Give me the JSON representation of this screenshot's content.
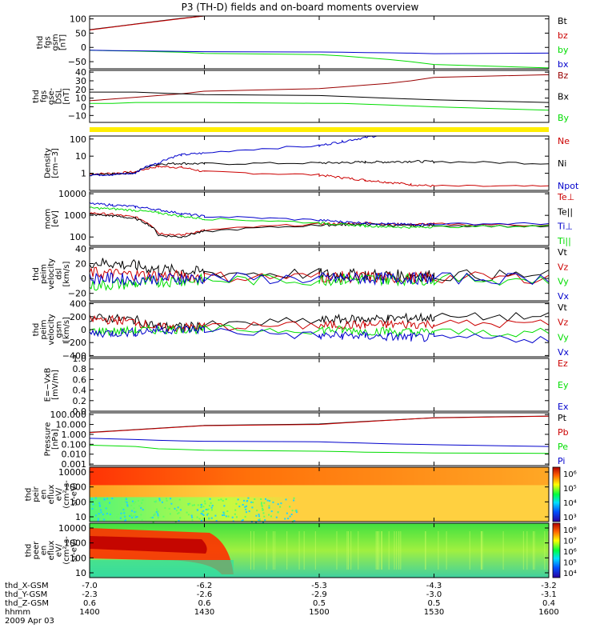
{
  "title": "P3 (TH-D) fields and on-board moments overview",
  "date_label": "2009 Apr 03",
  "orbit_rows": [
    {
      "label": "thd_X-GSM",
      "values": [
        "-7.0",
        "-6.2",
        "-5.3",
        "-4.3",
        "-3.2"
      ]
    },
    {
      "label": "thd_Y-GSM",
      "values": [
        "-2.3",
        "-2.6",
        "-2.9",
        "-3.0",
        "-3.1"
      ]
    },
    {
      "label": "thd_Z-GSM",
      "values": [
        "0.6",
        "0.6",
        "0.5",
        "0.5",
        "0.4"
      ]
    },
    {
      "label": "hhmm",
      "values": [
        "1400",
        "1430",
        "1500",
        "1530",
        "1600"
      ]
    }
  ],
  "colors": {
    "black": "#000000",
    "red": "#cc0000",
    "green": "#00dd00",
    "blue": "#0000cc",
    "darkred": "#990000",
    "yellow": "#ffee00"
  },
  "chart_data": [
    {
      "type": "line",
      "ylabel_lines": [
        "thd",
        "fgs",
        "gsm",
        "[nT]"
      ],
      "yticks": [
        "100",
        "50",
        "0",
        "−50"
      ],
      "ylim": [
        -75,
        110
      ],
      "x": [
        1400,
        1410,
        1420,
        1430,
        1440,
        1450,
        1500,
        1510,
        1520,
        1530,
        1540,
        1550,
        1600
      ],
      "series": [
        {
          "name": "Bt",
          "color": "black",
          "values": [
            62,
            72,
            82,
            92,
            102,
            112,
            null,
            null,
            null,
            null,
            null,
            null,
            null
          ]
        },
        {
          "name": "bz",
          "color": "red",
          "values": [
            61,
            71,
            81,
            91,
            101,
            111,
            null,
            null,
            null,
            null,
            null,
            null,
            null
          ]
        },
        {
          "name": "by",
          "color": "green",
          "values": [
            -10,
            -12,
            -13,
            -15,
            -17,
            -21,
            -25,
            -30,
            -36,
            -42,
            -50,
            -60,
            -72
          ]
        },
        {
          "name": "bx",
          "color": "blue",
          "values": [
            -10,
            -11,
            -12,
            -13,
            -14,
            -15,
            -16,
            -17,
            -18,
            -19,
            -20,
            -22,
            -20
          ]
        }
      ]
    },
    {
      "type": "line",
      "ylabel_lines": [
        "thd",
        "fgs",
        "gse-",
        "DSL",
        "[nT]"
      ],
      "yticks": [
        "40",
        "30",
        "20",
        "10",
        "0",
        "−10"
      ],
      "ylim": [
        -18,
        42
      ],
      "x": [
        1400,
        1410,
        1420,
        1430,
        1440,
        1450,
        1500,
        1510,
        1520,
        1530,
        1540,
        1550,
        1600
      ],
      "series": [
        {
          "name": "Bz",
          "color": "darkred",
          "values": [
            7,
            9,
            11,
            13,
            15,
            18,
            21,
            23,
            25,
            27,
            30,
            34,
            37
          ]
        },
        {
          "name": "Bx",
          "color": "black",
          "values": [
            17,
            17,
            17,
            16,
            15,
            14,
            13,
            12,
            11,
            10,
            9,
            8,
            5
          ]
        },
        {
          "name": "By",
          "color": "green",
          "values": [
            4,
            4,
            5,
            5,
            5,
            5,
            4,
            4,
            3,
            2,
            1,
            0,
            -4
          ]
        }
      ]
    },
    {
      "type": "line",
      "ylabel_lines": [
        "Density",
        "[cm−3]"
      ],
      "yticks": [
        "100",
        "10",
        "1"
      ],
      "yscale": "log",
      "ylim": [
        0.1,
        150
      ],
      "x": [
        1400,
        1410,
        1420,
        1430,
        1440,
        1450,
        1500,
        1510,
        1520,
        1530,
        1540,
        1550,
        1600
      ],
      "series": [
        {
          "name": "Ne",
          "color": "red",
          "values": [
            0.9,
            1.0,
            1.2,
            2.5,
            2.2,
            1.2,
            0.8,
            0.55,
            0.4,
            0.3,
            0.22,
            0.18,
            0.17
          ]
        },
        {
          "name": "Ni",
          "color": "black",
          "values": [
            0.8,
            0.9,
            1.1,
            3.5,
            3.8,
            3.6,
            4.0,
            4.2,
            4.5,
            4.6,
            5.0,
            4.8,
            3.8
          ]
        },
        {
          "name": "Npot",
          "color": "blue",
          "values": [
            0.8,
            0.85,
            1.0,
            4.0,
            12,
            15,
            40,
            70,
            120,
            200,
            null,
            null,
            null
          ]
        }
      ]
    },
    {
      "type": "line",
      "ylabel_lines": [
        "mom",
        "[eV]"
      ],
      "yticks": [
        "10000",
        "1000",
        "100"
      ],
      "yscale": "log",
      "ylim": [
        40,
        12000
      ],
      "x": [
        1400,
        1410,
        1420,
        1430,
        1440,
        1450,
        1500,
        1510,
        1520,
        1530,
        1540,
        1550,
        1600
      ],
      "series": [
        {
          "name": "Te⊥",
          "color": "red",
          "values": [
            1300,
            1100,
            800,
            150,
            120,
            200,
            400,
            420,
            450,
            400,
            380,
            400,
            350
          ]
        },
        {
          "name": "Te||",
          "color": "black",
          "values": [
            1100,
            950,
            700,
            120,
            100,
            180,
            350,
            370,
            400,
            350,
            330,
            350,
            300
          ]
        },
        {
          "name": "Ti⊥",
          "color": "blue",
          "values": [
            3500,
            3000,
            2500,
            1800,
            1200,
            900,
            600,
            500,
            450,
            400,
            380,
            400,
            420
          ]
        },
        {
          "name": "Ti||",
          "color": "green",
          "values": [
            2200,
            2000,
            1700,
            1300,
            900,
            700,
            450,
            380,
            330,
            300,
            280,
            300,
            320
          ]
        }
      ]
    },
    {
      "type": "line",
      "ylabel_lines": [
        "thd",
        "peim",
        "velocity",
        "dsl",
        "[km/s]"
      ],
      "yticks": [
        "40",
        "20",
        "0",
        "−20"
      ],
      "ylim": [
        -30,
        42
      ],
      "x": [
        1400,
        1410,
        1420,
        1430,
        1440,
        1450,
        1500,
        1510,
        1520,
        1530,
        1540,
        1550,
        1600
      ],
      "series": [
        {
          "name": "Vt",
          "color": "black",
          "values": [
            22,
            20,
            17,
            12,
            10,
            8,
            6,
            5,
            5,
            4,
            4,
            4,
            4
          ]
        },
        {
          "name": "Vz",
          "color": "red",
          "values": [
            8,
            6,
            5,
            4,
            3,
            2,
            2,
            2,
            2,
            1,
            1,
            1,
            1
          ]
        },
        {
          "name": "Vy",
          "color": "green",
          "values": [
            -10,
            -8,
            -7,
            -4,
            -3,
            -2,
            -2,
            -1,
            -1,
            -1,
            -1,
            -1,
            -1
          ]
        },
        {
          "name": "Vx",
          "color": "blue",
          "values": [
            0,
            0,
            -1,
            0,
            0,
            0,
            0,
            0,
            0,
            0,
            0,
            0,
            0
          ]
        }
      ]
    },
    {
      "type": "line",
      "ylabel_lines": [
        "thd",
        "peim",
        "velocity",
        "gsm",
        "[km/s]"
      ],
      "yticks": [
        "400",
        "200",
        "0",
        "−200",
        "−400"
      ],
      "ylim": [
        -420,
        420
      ],
      "x": [
        1400,
        1410,
        1420,
        1430,
        1440,
        1450,
        1500,
        1510,
        1520,
        1530,
        1540,
        1550,
        1600
      ],
      "series": [
        {
          "name": "Vt",
          "color": "black",
          "values": [
            180,
            170,
            150,
            50,
            40,
            60,
            140,
            160,
            160,
            170,
            180,
            190,
            200
          ]
        },
        {
          "name": "Vz",
          "color": "red",
          "values": [
            160,
            150,
            120,
            30,
            30,
            50,
            60,
            70,
            70,
            80,
            80,
            90,
            90
          ]
        },
        {
          "name": "Vy",
          "color": "green",
          "values": [
            -20,
            -30,
            -20,
            0,
            10,
            0,
            0,
            -10,
            -20,
            -30,
            -40,
            -40,
            -50
          ]
        },
        {
          "name": "Vx",
          "color": "blue",
          "values": [
            -60,
            -50,
            -40,
            0,
            0,
            0,
            -100,
            -90,
            -100,
            -110,
            -120,
            -130,
            -140
          ]
        }
      ]
    },
    {
      "type": "line",
      "ylabel_lines": [
        "E=−VxB",
        "[mV/m]"
      ],
      "yticks": [
        "1.0",
        "0.8",
        "0.6",
        "0.4",
        "0.2",
        "0.0"
      ],
      "ylim": [
        0,
        1
      ],
      "x": [],
      "series": [
        {
          "name": "Ez",
          "color": "red",
          "values": []
        },
        {
          "name": "Ey",
          "color": "green",
          "values": []
        },
        {
          "name": "Ex",
          "color": "blue",
          "values": []
        }
      ]
    },
    {
      "type": "line",
      "ylabel_lines": [
        "Pressure",
        "[nPa]"
      ],
      "yticks": [
        "100.000",
        "10.000",
        "1.000",
        "0.100",
        "0.010",
        "0.001"
      ],
      "yscale": "log",
      "ylim": [
        0.0007,
        150
      ],
      "x": [
        1400,
        1410,
        1420,
        1430,
        1440,
        1450,
        1500,
        1510,
        1520,
        1530,
        1540,
        1550,
        1600
      ],
      "series": [
        {
          "name": "Pt",
          "color": "black",
          "values": [
            1.6,
            2.2,
            3.0,
            4.2,
            5.8,
            8,
            11,
            15,
            20,
            27,
            36,
            48,
            70
          ]
        },
        {
          "name": "Pb",
          "color": "red",
          "values": [
            1.5,
            2.1,
            2.9,
            4.0,
            5.5,
            7.5,
            10,
            14,
            19,
            26,
            35,
            46,
            68
          ]
        },
        {
          "name": "Pe",
          "color": "green",
          "values": [
            0.08,
            0.07,
            0.06,
            0.035,
            0.03,
            0.025,
            0.02,
            0.018,
            0.016,
            0.015,
            0.014,
            0.013,
            0.012
          ]
        },
        {
          "name": "Pi",
          "color": "blue",
          "values": [
            0.4,
            0.35,
            0.3,
            0.25,
            0.22,
            0.2,
            0.18,
            0.15,
            0.13,
            0.11,
            0.1,
            0.09,
            0.06
          ]
        }
      ]
    },
    {
      "type": "heatmap",
      "ylabel_lines": [
        "thd",
        "peir",
        "en",
        "eflux",
        "eV/",
        "(cm²-s-",
        "sr-eV)"
      ],
      "yticks": [
        "10000",
        "1000",
        "100",
        "10"
      ],
      "colorbar_ticks": [
        "10⁶",
        "10⁵",
        "10⁴",
        "10³"
      ],
      "description": "ion energy flux spectrogram"
    },
    {
      "type": "heatmap",
      "ylabel_lines": [
        "thd",
        "peer",
        "en",
        "eflux",
        "eV/",
        "(cm²-s-",
        "sr-eV)"
      ],
      "yticks": [
        "10000",
        "1000",
        "100",
        "10"
      ],
      "colorbar_ticks": [
        "10⁸",
        "10⁷",
        "10⁶",
        "10⁵",
        "10⁴"
      ],
      "description": "electron energy flux spectrogram"
    }
  ]
}
